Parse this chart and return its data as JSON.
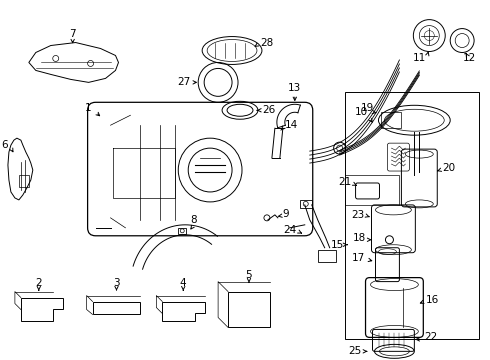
{
  "bg_color": "#ffffff",
  "fig_width": 4.9,
  "fig_height": 3.6,
  "dpi": 100,
  "lw": 0.7,
  "lw2": 0.9,
  "fs": 7.5
}
